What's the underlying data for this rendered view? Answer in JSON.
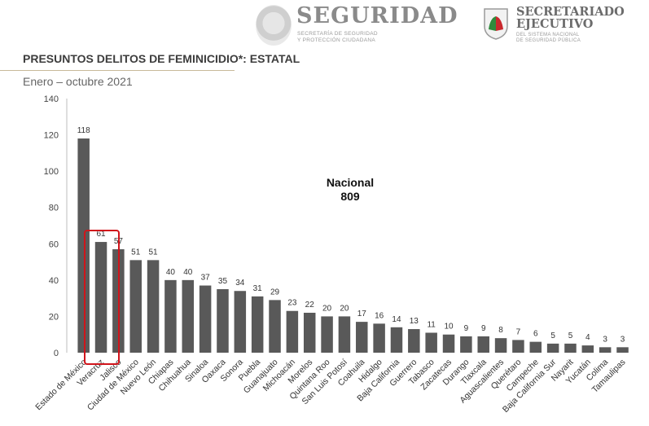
{
  "header": {
    "seguridad_title": "SEGURIDAD",
    "seguridad_sub_line1": "SECRETARÍA DE SEGURIDAD",
    "seguridad_sub_line2": "Y PROTECCIÓN CIUDADANA",
    "se_title_line1": "SECRETARIADO",
    "se_title_line2": "EJECUTIVO",
    "se_sub_line1": "DEL SISTEMA NACIONAL",
    "se_sub_line2": "DE SEGURIDAD PÚBLICA"
  },
  "colors": {
    "bar": "#595959",
    "highlight": "#d0141b",
    "rule": "#c8b99a"
  },
  "chart_data": {
    "type": "bar",
    "title": "PRESUNTOS DELITOS DE FEMINICIDIO*: ESTATAL",
    "subtitle": "Enero – octubre 2021",
    "categories": [
      "Estado de México",
      "Veracruz",
      "Jalisco",
      "Ciudad de México",
      "Nuevo León",
      "Chiapas",
      "Chihuahua",
      "Sinaloa",
      "Oaxaca",
      "Sonora",
      "Puebla",
      "Guanajuato",
      "Michoacán",
      "Morelos",
      "Quintana Roo",
      "San Luis Potosí",
      "Coahuila",
      "Hidalgo",
      "Baja California",
      "Guerrero",
      "Tabasco",
      "Zacatecas",
      "Durango",
      "Tlaxcala",
      "Aguascalientes",
      "Querétaro",
      "Campeche",
      "Baja California Sur",
      "Nayarit",
      "Yucatán",
      "Colima",
      "Tamaulipas"
    ],
    "values": [
      118,
      61,
      57,
      51,
      51,
      40,
      40,
      37,
      35,
      34,
      31,
      29,
      23,
      22,
      20,
      20,
      17,
      16,
      14,
      13,
      11,
      10,
      9,
      9,
      8,
      7,
      6,
      5,
      5,
      4,
      3,
      3
    ],
    "ylim": [
      0,
      140
    ],
    "yticks": [
      0,
      20,
      40,
      60,
      80,
      100,
      120,
      140
    ],
    "annotation_line1": "Nacional",
    "annotation_line2": "809",
    "highlighted_category": "Jalisco",
    "grid": false
  }
}
